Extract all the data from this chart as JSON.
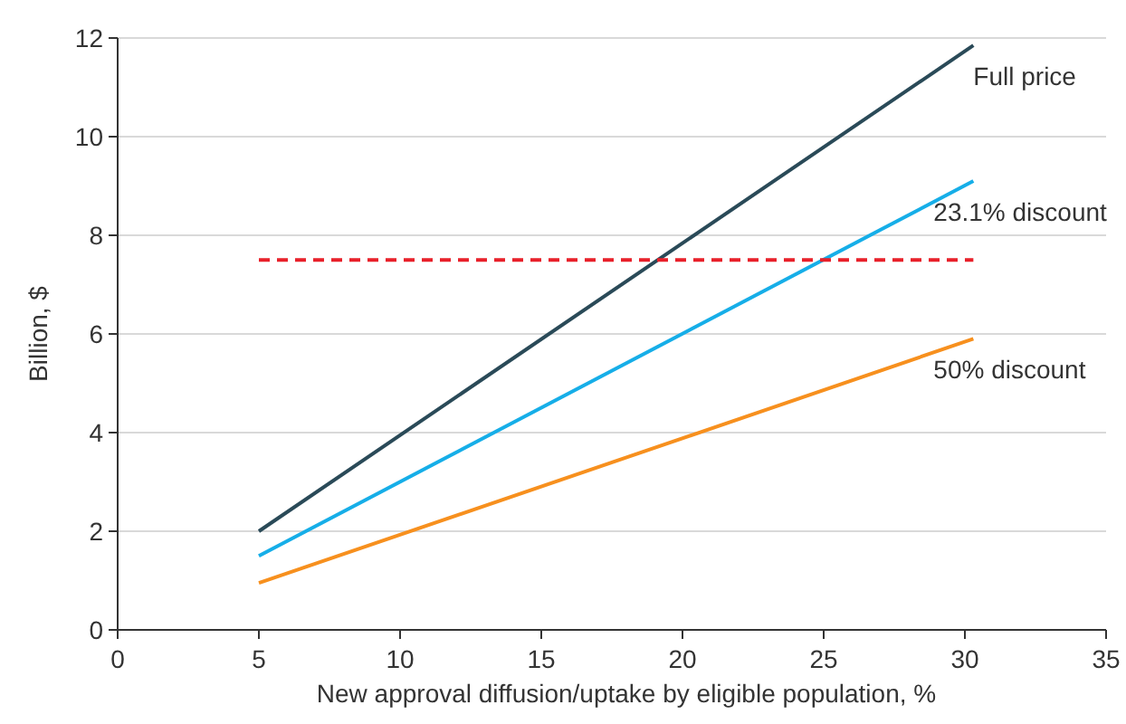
{
  "chart_data": {
    "type": "line",
    "xlabel": "New approval diffusion/uptake by eligible population, %",
    "ylabel": "Billion, $",
    "xlim": [
      0,
      35
    ],
    "xticks": [
      0,
      5,
      10,
      15,
      20,
      25,
      30,
      35
    ],
    "ylim": [
      0,
      12
    ],
    "yticks": [
      0,
      2,
      4,
      6,
      8,
      10,
      12
    ],
    "grid": "y",
    "legend": false,
    "marker": "none",
    "x": [
      5,
      30.3
    ],
    "series": [
      {
        "name": "Full price",
        "color": "#2a4a58",
        "values": [
          2,
          11.85
        ]
      },
      {
        "name": "23.1% discount",
        "color": "#16aee8",
        "values": [
          1.5,
          9.1
        ]
      },
      {
        "name": "50% discount",
        "color": "#f7901e",
        "values": [
          0.95,
          5.9
        ]
      },
      {
        "color": "#e8202a",
        "values": [
          7.5,
          7.5
        ],
        "line_style": "dashed"
      }
    ]
  }
}
